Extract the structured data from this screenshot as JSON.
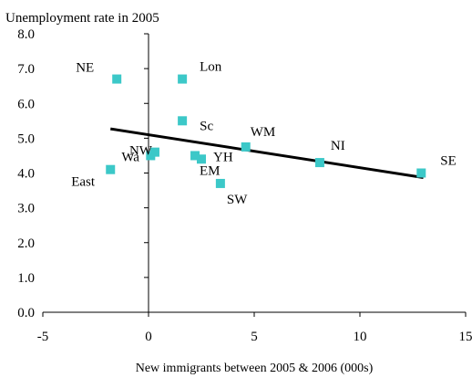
{
  "chart_data": {
    "type": "scatter",
    "title": "",
    "ylabel": "Unemployment rate in 2005",
    "xlabel": "New immigrants between 2005 & 2006 (000s)",
    "xlim": [
      -5,
      15
    ],
    "ylim": [
      0,
      8
    ],
    "xticks": [
      -5,
      0,
      5,
      10,
      15
    ],
    "xtick_labels": [
      "-5",
      "0",
      "5",
      "10",
      "15"
    ],
    "yticks": [
      0,
      1,
      2,
      3,
      4,
      5,
      6,
      7,
      8
    ],
    "ytick_labels": [
      "0.0",
      "1.0",
      "2.0",
      "3.0",
      "4.0",
      "5.0",
      "6.0",
      "7.0",
      "8.0"
    ],
    "grid": false,
    "marker_color": "#3cc8c8",
    "trendline_color": "#000000",
    "points": [
      {
        "label": "NE",
        "x": -1.5,
        "y": 6.7
      },
      {
        "label": "Lon",
        "x": 1.6,
        "y": 6.7
      },
      {
        "label": "Sc",
        "x": 1.6,
        "y": 5.5
      },
      {
        "label": "WM",
        "x": 4.6,
        "y": 4.75
      },
      {
        "label": "NI",
        "x": 8.1,
        "y": 4.3
      },
      {
        "label": "SE",
        "x": 12.9,
        "y": 4.0
      },
      {
        "label": "NW",
        "x": 0.3,
        "y": 4.6
      },
      {
        "label": "Wa",
        "x": 0.1,
        "y": 4.5
      },
      {
        "label": "YH",
        "x": 2.2,
        "y": 4.5
      },
      {
        "label": "EM",
        "x": 2.5,
        "y": 4.4
      },
      {
        "label": "East",
        "x": -1.8,
        "y": 4.1
      },
      {
        "label": "SW",
        "x": 3.4,
        "y": 3.7
      }
    ],
    "trendline": {
      "x": [
        -1.8,
        13.0
      ],
      "y": [
        5.27,
        3.87
      ]
    }
  }
}
